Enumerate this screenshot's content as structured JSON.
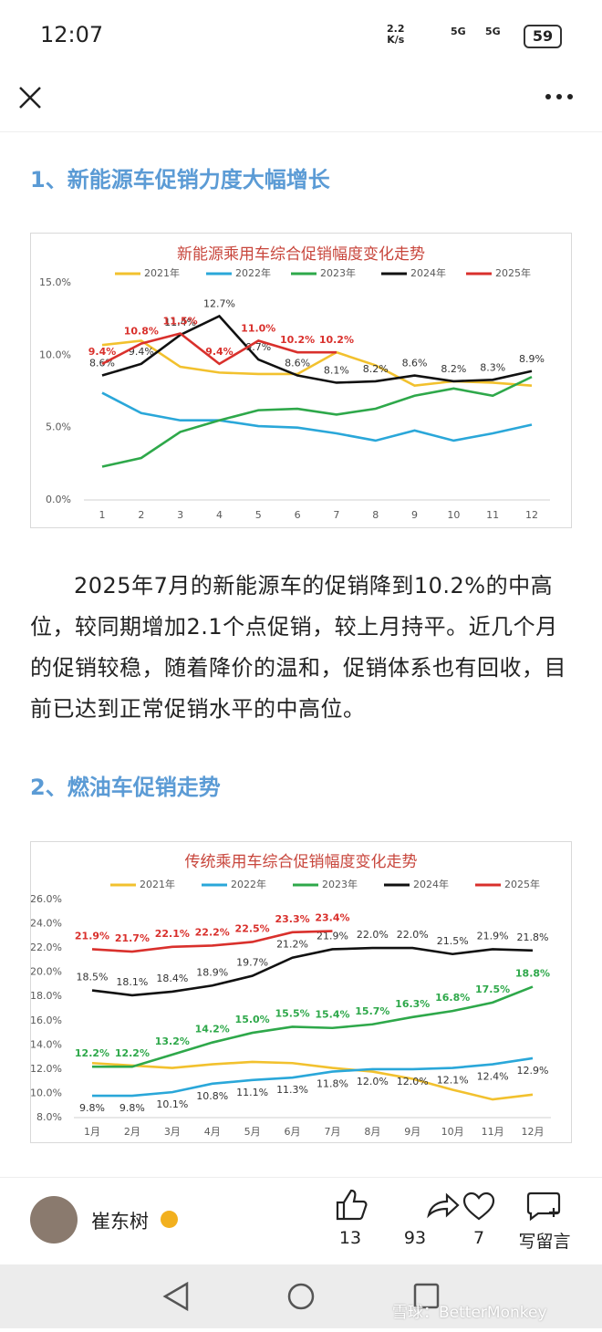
{
  "status_bar": {
    "time": "12:07",
    "speed": "2.2",
    "speed_unit": "K/s",
    "net1": "5G",
    "net2": "5G",
    "battery": "59"
  },
  "article": {
    "heading1": "1、新能源车促销力度大幅增长",
    "paragraph": "2025年7月的新能源车的促销降到10.2%的中高位，较同期增加2.1个点促销，较上月持平。近几个月的促销较稳，随着降价的温和，促销体系也有回收，目前已达到正常促销水平的中高位。",
    "heading2": "2、燃油车促销走势"
  },
  "chart_data": [
    {
      "type": "line",
      "title": "新能源乘用车综合促销幅度变化走势",
      "categories": [
        "1",
        "2",
        "3",
        "4",
        "5",
        "6",
        "7",
        "8",
        "9",
        "10",
        "11",
        "12"
      ],
      "ylim": [
        0,
        15
      ],
      "yticks": [
        {
          "value": 0,
          "label": "0.0%"
        },
        {
          "value": 5,
          "label": "5.0%"
        },
        {
          "value": 10,
          "label": "10.0%"
        },
        {
          "value": 15,
          "label": "15.0%"
        }
      ],
      "grid": false,
      "series": [
        {
          "name": "2021年",
          "color": "#f2c12e",
          "values": [
            10.7,
            11.0,
            9.2,
            8.8,
            8.7,
            8.7,
            10.2,
            9.3,
            7.9,
            8.2,
            8.1,
            7.9
          ]
        },
        {
          "name": "2022年",
          "color": "#2aa7d9",
          "values": [
            7.4,
            6.0,
            5.5,
            5.5,
            5.1,
            5.0,
            4.6,
            4.1,
            4.8,
            4.1,
            4.6,
            5.2
          ]
        },
        {
          "name": "2023年",
          "color": "#2ea84a",
          "values": [
            2.3,
            2.9,
            4.7,
            5.5,
            6.2,
            6.3,
            5.9,
            6.3,
            7.2,
            7.7,
            7.2,
            8.5
          ]
        },
        {
          "name": "2024年",
          "color": "#111111",
          "values": [
            8.6,
            9.4,
            11.4,
            12.7,
            9.7,
            8.6,
            8.1,
            8.2,
            8.6,
            8.2,
            8.3,
            8.9
          ],
          "value_labels": [
            "8.6%",
            "9.4%",
            "11.4%",
            "12.7%",
            "9.7%",
            "8.6%",
            "8.1%",
            "8.2%",
            "8.6%",
            "8.2%",
            "8.3%",
            "8.9%"
          ]
        },
        {
          "name": "2025年",
          "color": "#d9302c",
          "values": [
            9.4,
            10.8,
            11.5,
            9.4,
            11.0,
            10.2,
            10.2,
            null,
            null,
            null,
            null,
            null
          ],
          "value_labels": [
            "9.4%",
            "10.8%",
            "11.5%",
            "9.4%",
            "11.0%",
            "10.2%",
            "10.2%",
            null,
            null,
            null,
            null,
            null
          ]
        }
      ]
    },
    {
      "type": "line",
      "title": "传统乘用车综合促销幅度变化走势",
      "categories": [
        "1月",
        "2月",
        "3月",
        "4月",
        "5月",
        "6月",
        "7月",
        "8月",
        "9月",
        "10月",
        "11月",
        "12月"
      ],
      "ylim": [
        8,
        26
      ],
      "yticks": [
        {
          "value": 8,
          "label": "8.0%"
        },
        {
          "value": 10,
          "label": "10.0%"
        },
        {
          "value": 12,
          "label": "12.0%"
        },
        {
          "value": 14,
          "label": "14.0%"
        },
        {
          "value": 16,
          "label": "16.0%"
        },
        {
          "value": 18,
          "label": "18.0%"
        },
        {
          "value": 20,
          "label": "20.0%"
        },
        {
          "value": 22,
          "label": "22.0%"
        },
        {
          "value": 24,
          "label": "24.0%"
        },
        {
          "value": 26,
          "label": "26.0%"
        }
      ],
      "grid": false,
      "series": [
        {
          "name": "2021年",
          "color": "#f2c12e",
          "values": [
            12.5,
            12.3,
            12.1,
            12.4,
            12.6,
            12.5,
            12.1,
            11.8,
            11.2,
            10.3,
            9.5,
            9.9
          ]
        },
        {
          "name": "2022年",
          "color": "#2aa7d9",
          "values": [
            9.8,
            9.8,
            10.1,
            10.8,
            11.1,
            11.3,
            11.8,
            12.0,
            12.0,
            12.1,
            12.4,
            12.9
          ],
          "value_labels": [
            "9.8%",
            "9.8%",
            "10.1%",
            "10.8%",
            "11.1%",
            "11.3%",
            "11.8%",
            "12.0%",
            "12.0%",
            "12.1%",
            "12.4%",
            "12.9%"
          ]
        },
        {
          "name": "2023年",
          "color": "#2ea84a",
          "values": [
            12.2,
            12.2,
            13.2,
            14.2,
            15.0,
            15.5,
            15.4,
            15.7,
            16.3,
            16.8,
            17.5,
            18.8
          ],
          "value_labels": [
            "12.2%",
            "12.2%",
            "13.2%",
            "14.2%",
            "15.0%",
            "15.5%",
            "15.4%",
            "15.7%",
            "16.3%",
            "16.8%",
            "17.5%",
            "18.8%"
          ]
        },
        {
          "name": "2024年",
          "color": "#111111",
          "values": [
            18.5,
            18.1,
            18.4,
            18.9,
            19.7,
            21.2,
            21.9,
            22.0,
            22.0,
            21.5,
            21.9,
            21.8
          ],
          "value_labels": [
            "18.5%",
            "18.1%",
            "18.4%",
            "18.9%",
            "19.7%",
            "21.2%",
            "21.9%",
            "22.0%",
            "22.0%",
            "21.5%",
            "21.9%",
            "21.8%"
          ]
        },
        {
          "name": "2025年",
          "color": "#d9302c",
          "values": [
            21.9,
            21.7,
            22.1,
            22.2,
            22.5,
            23.3,
            23.4,
            null,
            null,
            null,
            null,
            null
          ],
          "value_labels": [
            "21.9%",
            "21.7%",
            "22.1%",
            "22.2%",
            "22.5%",
            "23.3%",
            "23.4%",
            null,
            null,
            null,
            null,
            null
          ]
        }
      ]
    }
  ],
  "footer": {
    "author": "崔东树",
    "likes": "13",
    "shares": "93",
    "favorites": "7",
    "comment": "写留言"
  },
  "watermark": "雪球：BetterMonkey"
}
